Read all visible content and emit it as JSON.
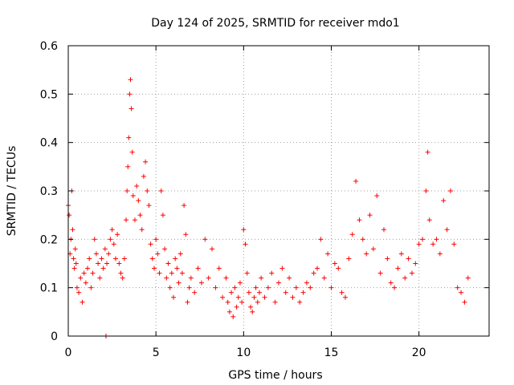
{
  "chart_data": {
    "type": "scatter",
    "title": "Day 124 of 2025, SRMTID for receiver mdo1",
    "xlabel": "GPS time / hours",
    "ylabel": "SRMTID / TECUs",
    "xlim": [
      0,
      24
    ],
    "ylim": [
      0,
      0.6
    ],
    "xticks": [
      0,
      5,
      10,
      15,
      20
    ],
    "xtick_labels": [
      "0",
      "5",
      "10",
      "15",
      "20"
    ],
    "yticks": [
      0,
      0.1,
      0.2,
      0.3,
      0.4,
      0.5,
      0.6
    ],
    "ytick_labels": [
      "0",
      "0.1",
      "0.2",
      "0.3",
      "0.4",
      "0.5",
      "0.6"
    ],
    "grid": true,
    "marker": "+",
    "marker_color": "#ff0000",
    "series": [
      {
        "name": "SRMTID",
        "x": [
          0.0,
          0.05,
          0.1,
          0.15,
          0.2,
          0.25,
          0.3,
          0.35,
          0.4,
          0.45,
          0.5,
          0.6,
          0.7,
          0.8,
          0.9,
          1.0,
          1.1,
          1.2,
          1.3,
          1.4,
          1.5,
          1.6,
          1.7,
          1.8,
          1.9,
          2.0,
          2.1,
          2.15,
          2.2,
          2.3,
          2.4,
          2.5,
          2.6,
          2.7,
          2.8,
          2.9,
          3.0,
          3.1,
          3.2,
          3.3,
          3.35,
          3.4,
          3.45,
          3.5,
          3.55,
          3.6,
          3.65,
          3.7,
          3.8,
          3.9,
          4.0,
          4.1,
          4.2,
          4.3,
          4.4,
          4.5,
          4.6,
          4.7,
          4.8,
          4.9,
          5.0,
          5.1,
          5.2,
          5.3,
          5.4,
          5.5,
          5.6,
          5.7,
          5.8,
          5.9,
          6.0,
          6.1,
          6.2,
          6.3,
          6.4,
          6.5,
          6.6,
          6.7,
          6.8,
          6.9,
          7.0,
          7.2,
          7.4,
          7.6,
          7.8,
          8.0,
          8.2,
          8.4,
          8.6,
          8.8,
          9.0,
          9.1,
          9.2,
          9.3,
          9.4,
          9.5,
          9.6,
          9.7,
          9.8,
          9.9,
          10.0,
          10.1,
          10.2,
          10.3,
          10.4,
          10.5,
          10.6,
          10.7,
          10.8,
          10.9,
          11.0,
          11.2,
          11.4,
          11.6,
          11.8,
          12.0,
          12.2,
          12.4,
          12.6,
          12.8,
          13.0,
          13.2,
          13.4,
          13.6,
          13.8,
          14.0,
          14.2,
          14.4,
          14.6,
          14.8,
          15.0,
          15.2,
          15.4,
          15.6,
          15.8,
          16.0,
          16.2,
          16.4,
          16.6,
          16.8,
          17.0,
          17.2,
          17.4,
          17.6,
          17.8,
          18.0,
          18.2,
          18.4,
          18.6,
          18.8,
          19.0,
          19.2,
          19.4,
          19.6,
          19.8,
          20.0,
          20.2,
          20.4,
          20.5,
          20.6,
          20.8,
          21.0,
          21.2,
          21.4,
          21.6,
          21.8,
          22.0,
          22.2,
          22.4,
          22.6,
          22.8
        ],
        "y": [
          0.27,
          0.25,
          0.17,
          0.2,
          0.3,
          0.22,
          0.16,
          0.14,
          0.18,
          0.15,
          0.1,
          0.09,
          0.12,
          0.07,
          0.13,
          0.11,
          0.14,
          0.16,
          0.1,
          0.13,
          0.2,
          0.17,
          0.15,
          0.12,
          0.16,
          0.14,
          0.18,
          0.0,
          0.15,
          0.17,
          0.2,
          0.22,
          0.19,
          0.16,
          0.21,
          0.15,
          0.13,
          0.12,
          0.16,
          0.24,
          0.3,
          0.35,
          0.41,
          0.5,
          0.53,
          0.47,
          0.38,
          0.29,
          0.24,
          0.31,
          0.28,
          0.25,
          0.22,
          0.33,
          0.36,
          0.3,
          0.27,
          0.19,
          0.16,
          0.14,
          0.2,
          0.17,
          0.13,
          0.3,
          0.25,
          0.18,
          0.12,
          0.15,
          0.1,
          0.13,
          0.08,
          0.16,
          0.14,
          0.11,
          0.17,
          0.13,
          0.27,
          0.21,
          0.07,
          0.1,
          0.12,
          0.09,
          0.14,
          0.11,
          0.2,
          0.12,
          0.18,
          0.1,
          0.14,
          0.08,
          0.12,
          0.07,
          0.05,
          0.09,
          0.04,
          0.1,
          0.06,
          0.08,
          0.11,
          0.07,
          0.22,
          0.19,
          0.13,
          0.09,
          0.06,
          0.05,
          0.08,
          0.1,
          0.07,
          0.09,
          0.12,
          0.08,
          0.1,
          0.13,
          0.07,
          0.11,
          0.14,
          0.09,
          0.12,
          0.08,
          0.1,
          0.07,
          0.09,
          0.11,
          0.1,
          0.13,
          0.14,
          0.2,
          0.12,
          0.17,
          0.1,
          0.15,
          0.14,
          0.09,
          0.08,
          0.16,
          0.21,
          0.32,
          0.24,
          0.2,
          0.17,
          0.25,
          0.18,
          0.29,
          0.13,
          0.22,
          0.16,
          0.11,
          0.1,
          0.14,
          0.17,
          0.12,
          0.16,
          0.13,
          0.15,
          0.19,
          0.2,
          0.3,
          0.38,
          0.24,
          0.19,
          0.2,
          0.17,
          0.28,
          0.22,
          0.3,
          0.19,
          0.1,
          0.09,
          0.07,
          0.12
        ]
      }
    ]
  }
}
